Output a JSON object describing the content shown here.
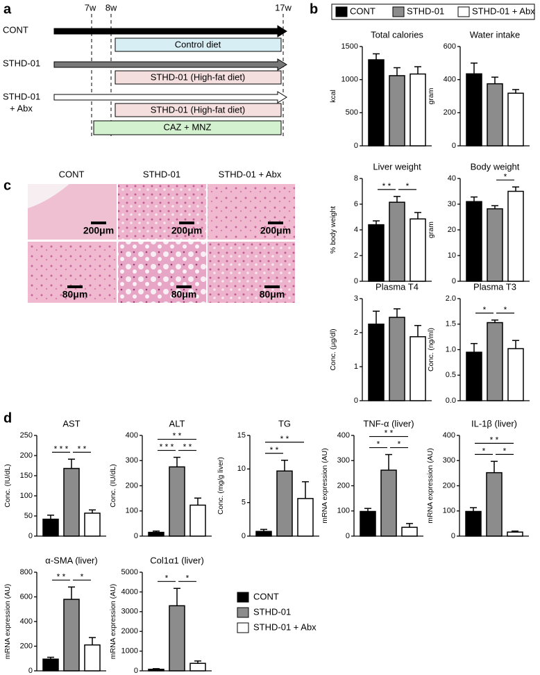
{
  "panel_labels": [
    "a",
    "b",
    "c",
    "d"
  ],
  "schematic": {
    "weeks": [
      "7w",
      "8w",
      "17w"
    ],
    "rows": [
      [
        "CONT"
      ],
      [
        "STHD-01"
      ],
      [
        "STHD-01",
        "+ Abx"
      ]
    ],
    "diets": [
      "Control diet",
      "STHD-01 (High-fat diet)",
      "STHD-01 (High-fat diet)",
      "CAZ + MNZ"
    ]
  },
  "histology": {
    "columns": [
      "CONT",
      "STHD-01",
      "STHD-01 + Abx"
    ],
    "scale_bars": [
      [
        "200μm",
        "200μm",
        "200μm"
      ],
      [
        "80μm",
        "80μm",
        "80μm"
      ]
    ]
  },
  "legends": [
    {
      "groups": [
        {
          "name": "CONT",
          "color": "#000000"
        },
        {
          "name": "STHD-01",
          "color": "#8c8c8c"
        },
        {
          "name": "STHD-01 + Abx",
          "color": "#ffffff"
        }
      ]
    },
    {
      "groups": [
        {
          "name": "CONT",
          "color": "#000000"
        },
        {
          "name": "STHD-01",
          "color": "#8c8c8c"
        },
        {
          "name": "STHD-01 + Abx",
          "color": "#ffffff"
        }
      ]
    }
  ],
  "chart_data": [
    {
      "type": "bar",
      "title": "Total calories",
      "y_label": "kcal",
      "ylim": [
        0,
        1500
      ],
      "yticks": [
        0,
        500,
        1000,
        1500
      ],
      "values": [
        1300,
        1060,
        1085
      ],
      "errors": [
        90,
        120,
        110
      ],
      "brackets": []
    },
    {
      "type": "bar",
      "title": "Water intake",
      "y_label": "gram",
      "ylim": [
        0,
        600
      ],
      "yticks": [
        0,
        200,
        400,
        600
      ],
      "values": [
        435,
        375,
        318
      ],
      "errors": [
        65,
        40,
        22
      ],
      "brackets": []
    },
    {
      "type": "bar",
      "title": "Liver weight",
      "y_label": "% body weight",
      "ylim": [
        0,
        8
      ],
      "yticks": [
        0,
        2,
        4,
        6,
        8
      ],
      "values": [
        4.4,
        6.15,
        4.85
      ],
      "errors": [
        0.3,
        0.45,
        0.5
      ],
      "brackets": [
        {
          "from": 0,
          "to": 1,
          "label": "* *"
        },
        {
          "from": 1,
          "to": 2,
          "label": "*"
        }
      ]
    },
    {
      "type": "bar",
      "title": "Body weight",
      "y_label": "gram",
      "ylim": [
        0,
        40
      ],
      "yticks": [
        0,
        10,
        20,
        30,
        40
      ],
      "values": [
        31,
        28.2,
        35
      ],
      "errors": [
        1.8,
        1.2,
        1.7
      ],
      "brackets": [
        {
          "from": 1,
          "to": 2,
          "label": "*"
        }
      ]
    },
    {
      "type": "bar",
      "title": "Plasma T4",
      "y_label": "Conc. (μg/dl)",
      "ylim": [
        0,
        3
      ],
      "yticks": [
        0,
        1,
        2,
        3
      ],
      "values": [
        2.25,
        2.45,
        1.88
      ],
      "errors": [
        0.38,
        0.25,
        0.33
      ],
      "brackets": []
    },
    {
      "type": "bar",
      "title": "Plasma T3",
      "y_label": "Conc. (ng/ml)",
      "ylim": [
        0,
        2
      ],
      "yticks": [
        {
          "value": 0,
          "label": "0.0"
        },
        {
          "value": 0.5,
          "label": "0.5"
        },
        {
          "value": 1,
          "label": "1.0"
        },
        {
          "value": 1.5,
          "label": "1.5"
        },
        {
          "value": 2,
          "label": "2.0"
        }
      ],
      "values": [
        0.95,
        1.53,
        1.02
      ],
      "errors": [
        0.17,
        0.05,
        0.16
      ],
      "brackets": [
        {
          "from": 0,
          "to": 1,
          "label": "*"
        },
        {
          "from": 1,
          "to": 2,
          "label": "*"
        }
      ]
    },
    {
      "type": "bar",
      "title": "AST",
      "y_label": "Conc. (IU/dL)",
      "ylim": [
        0,
        250
      ],
      "yticks": [
        0,
        50,
        100,
        150,
        200,
        250
      ],
      "values": [
        42,
        168,
        57
      ],
      "errors": [
        10,
        23,
        8
      ],
      "brackets": [
        {
          "from": 0,
          "to": 1,
          "label": "* * *"
        },
        {
          "from": 1,
          "to": 2,
          "label": "* *"
        }
      ]
    },
    {
      "type": "bar",
      "title": "ALT",
      "y_label": "Conc. (IU/dL)",
      "ylim": [
        0,
        400
      ],
      "yticks": [
        0,
        100,
        200,
        300,
        400
      ],
      "values": [
        15,
        275,
        123
      ],
      "errors": [
        5,
        38,
        28
      ],
      "brackets": [
        {
          "from": 0,
          "to": 2,
          "label": "* *"
        },
        {
          "from": 0,
          "to": 1,
          "label": "* * *"
        },
        {
          "from": 1,
          "to": 2,
          "label": "* *"
        }
      ]
    },
    {
      "type": "bar",
      "title": "TG",
      "y_label": "Conc. (mg/g liver)",
      "ylim": [
        0,
        15
      ],
      "yticks": [
        0,
        5,
        10,
        15
      ],
      "values": [
        0.7,
        9.7,
        5.6
      ],
      "errors": [
        0.3,
        1.6,
        2.5
      ],
      "brackets": [
        {
          "from": 0,
          "to": 2,
          "label": "* *"
        },
        {
          "from": 0,
          "to": 1,
          "label": "* *"
        }
      ]
    },
    {
      "type": "bar",
      "title": "TNF-α (liver)",
      "y_label": "mRNA expression (AU)",
      "ylim": [
        0,
        400
      ],
      "yticks": [
        0,
        100,
        200,
        300,
        400
      ],
      "values": [
        98,
        262,
        35
      ],
      "errors": [
        12,
        62,
        15
      ],
      "brackets": [
        {
          "from": 0,
          "to": 2,
          "label": "* *"
        },
        {
          "from": 0,
          "to": 1,
          "label": "*"
        },
        {
          "from": 1,
          "to": 2,
          "label": "*"
        }
      ]
    },
    {
      "type": "bar",
      "title": "IL-1β (liver)",
      "y_label": "mRNA expression (AU)",
      "ylim": [
        0,
        400
      ],
      "yticks": [
        0,
        100,
        200,
        300,
        400
      ],
      "values": [
        98,
        252,
        16
      ],
      "errors": [
        15,
        45,
        4
      ],
      "brackets": [
        {
          "from": 0,
          "to": 2,
          "label": "* *"
        },
        {
          "from": 0,
          "to": 1,
          "label": "*"
        },
        {
          "from": 1,
          "to": 2,
          "label": "*"
        }
      ]
    },
    {
      "type": "bar",
      "title": "α-SMA (liver)",
      "y_label": "mRNA expression (AU)",
      "ylim": [
        0,
        800
      ],
      "yticks": [
        0,
        200,
        400,
        600,
        800
      ],
      "values": [
        95,
        580,
        210
      ],
      "errors": [
        15,
        100,
        60
      ],
      "brackets": [
        {
          "from": 0,
          "to": 1,
          "label": "* *"
        },
        {
          "from": 1,
          "to": 2,
          "label": "*"
        }
      ]
    },
    {
      "type": "bar",
      "title": "Col1α1 (liver)",
      "y_label": "mRNA expression (AU)",
      "ylim": [
        0,
        5000
      ],
      "yticks": [
        0,
        1000,
        2000,
        3000,
        4000,
        5000
      ],
      "values": [
        80,
        3300,
        380
      ],
      "errors": [
        30,
        880,
        120
      ],
      "brackets": [
        {
          "from": 0,
          "to": 1,
          "label": "*"
        },
        {
          "from": 1,
          "to": 2,
          "label": "*"
        }
      ]
    }
  ]
}
